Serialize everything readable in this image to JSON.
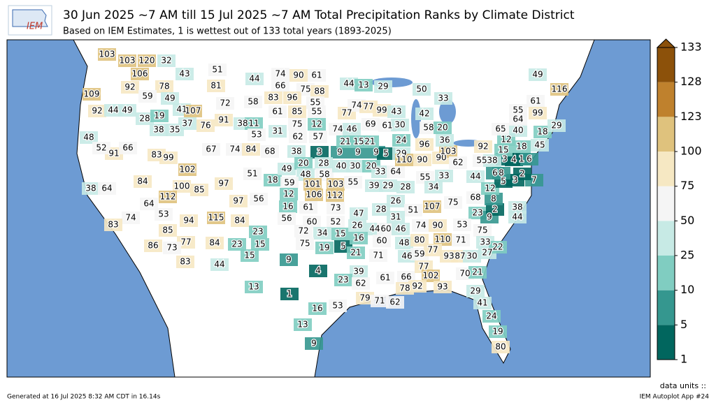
{
  "header": {
    "title": "30 Jun 2025 ~7 AM till 15 Jul 2025 ~7 AM Total Precipitation Ranks by Climate District",
    "subtitle": "Based on IEM Estimates, 1 is wettest out of 133 total years (1893-2025)"
  },
  "logo": "IEM",
  "colorbar": {
    "ticks": [
      1,
      5,
      10,
      25,
      50,
      75,
      100,
      123,
      128,
      133
    ],
    "colors": [
      "#01665e",
      "#35978f",
      "#80cdc1",
      "#c7eae5",
      "#f5f5f5",
      "#f6e8c3",
      "#dfc27d",
      "#bf812d",
      "#8c510a"
    ],
    "units_label": "data units ::"
  },
  "districts": [
    103,
    103,
    120,
    32,
    106,
    92,
    109,
    78,
    59,
    49,
    92,
    44,
    49,
    28,
    19,
    41,
    38,
    35,
    43,
    51,
    44,
    81,
    72,
    58,
    107,
    91,
    37,
    76,
    67,
    74,
    84,
    38,
    11,
    53,
    31,
    68,
    91,
    48,
    52,
    66,
    83,
    99,
    102,
    84,
    100,
    85,
    97,
    51,
    18,
    56,
    112,
    64,
    97,
    38,
    64,
    53,
    74,
    83,
    94,
    115,
    84,
    85,
    77,
    86,
    73,
    83,
    84,
    23,
    23,
    15,
    44,
    74,
    90,
    61,
    66,
    75,
    88,
    44,
    13,
    29,
    83,
    96,
    55,
    61,
    85,
    55,
    75,
    12,
    62,
    57,
    77,
    74,
    77,
    99,
    43,
    69,
    61,
    30,
    74,
    46,
    38,
    3,
    9,
    9,
    9,
    5,
    29,
    21,
    15,
    21,
    24,
    49,
    20,
    28,
    48,
    58,
    40,
    30,
    20,
    33,
    64,
    59,
    101,
    103,
    12,
    106,
    112,
    55,
    39,
    29,
    28,
    16,
    61,
    73,
    47,
    28,
    26,
    56,
    60,
    52,
    72,
    34,
    15,
    15,
    75,
    19,
    5,
    26,
    44,
    60,
    46,
    16,
    21,
    60,
    71,
    9,
    4,
    39,
    23,
    62,
    61,
    66,
    13,
    1,
    16,
    53,
    79,
    71,
    62,
    13,
    9,
    110,
    90,
    90,
    103,
    62,
    50,
    33,
    42,
    58,
    20,
    96,
    36,
    55,
    34,
    51,
    107,
    75,
    74,
    90,
    31,
    48,
    80,
    110,
    71,
    46,
    59,
    77,
    93,
    87,
    30,
    27,
    77,
    102,
    70,
    21,
    78,
    92,
    93,
    29,
    41,
    24,
    19,
    80,
    33,
    44,
    68,
    23,
    53,
    75,
    33,
    22,
    38,
    44,
    9,
    2,
    8,
    12,
    5,
    3,
    7,
    2,
    8,
    6,
    3,
    55,
    38,
    4,
    1,
    6,
    15,
    18,
    45,
    12,
    92,
    65,
    40,
    64,
    55,
    18,
    29,
    61,
    99,
    49,
    116
  ],
  "footer": {
    "generated": "Generated at 16 Jul 2025 8:32 AM CDT in 16.14s",
    "app": "IEM Autoplot App #24"
  }
}
